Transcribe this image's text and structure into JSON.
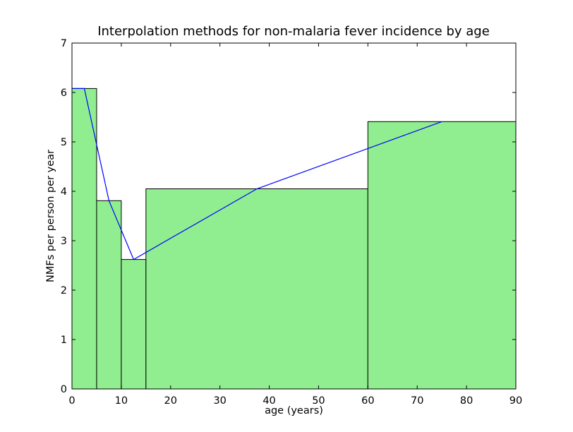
{
  "chart_data": {
    "type": "bar",
    "title": "Interpolation methods for non-malaria fever incidence by age",
    "xlabel": "age (years)",
    "ylabel": "NMFs per person per year",
    "xlim": [
      0,
      90
    ],
    "ylim": [
      0,
      7
    ],
    "xticks": [
      0,
      10,
      20,
      30,
      40,
      50,
      60,
      70,
      80,
      90
    ],
    "yticks": [
      0,
      1,
      2,
      3,
      4,
      5,
      6,
      7
    ],
    "grid": false,
    "legend": "none",
    "bars": [
      {
        "x0": 0,
        "x1": 5,
        "value": 6.08
      },
      {
        "x0": 5,
        "x1": 10,
        "value": 3.81
      },
      {
        "x0": 10,
        "x1": 15,
        "value": 2.62
      },
      {
        "x0": 15,
        "x1": 60,
        "value": 4.05
      },
      {
        "x0": 60,
        "x1": 90,
        "value": 5.41
      }
    ],
    "line": {
      "x": [
        0,
        2.5,
        7.5,
        12.5,
        37.5,
        75
      ],
      "y": [
        6.08,
        6.08,
        3.81,
        2.62,
        4.05,
        5.41
      ]
    },
    "colors": {
      "bar_fill": "#90ee90",
      "bar_edge": "#000000",
      "line": "#0000ff"
    }
  }
}
